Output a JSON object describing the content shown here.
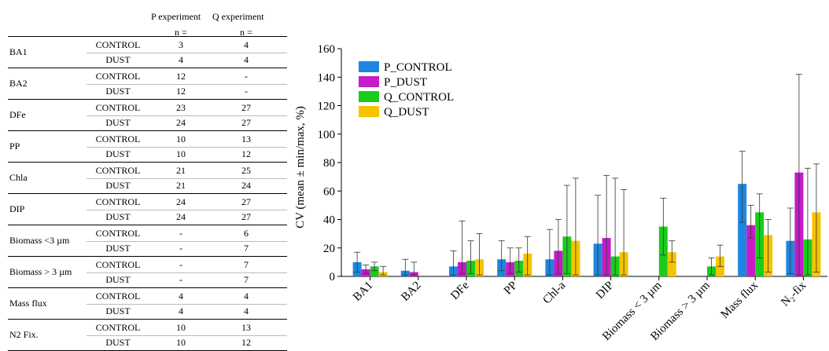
{
  "table": {
    "col_p": "P experiment",
    "col_q": "Q experiment",
    "n_label": "n =",
    "rows": [
      {
        "var": "BA1",
        "groups": [
          {
            "cond": "CONTROL",
            "p": "3",
            "q": "4"
          },
          {
            "cond": "DUST",
            "p": "4",
            "q": "4"
          }
        ]
      },
      {
        "var": "BA2",
        "groups": [
          {
            "cond": "CONTROL",
            "p": "12",
            "q": "-"
          },
          {
            "cond": "DUST",
            "p": "12",
            "q": "-"
          }
        ]
      },
      {
        "var": "DFe",
        "groups": [
          {
            "cond": "CONTROL",
            "p": "23",
            "q": "27"
          },
          {
            "cond": "DUST",
            "p": "24",
            "q": "27"
          }
        ]
      },
      {
        "var": "PP",
        "groups": [
          {
            "cond": "CONTROL",
            "p": "10",
            "q": "13"
          },
          {
            "cond": "DUST",
            "p": "10",
            "q": "12"
          }
        ]
      },
      {
        "var": "Chla",
        "groups": [
          {
            "cond": "CONTROL",
            "p": "21",
            "q": "25"
          },
          {
            "cond": "DUST",
            "p": "21",
            "q": "24"
          }
        ]
      },
      {
        "var": "DIP",
        "groups": [
          {
            "cond": "CONTROL",
            "p": "24",
            "q": "27"
          },
          {
            "cond": "DUST",
            "p": "24",
            "q": "27"
          }
        ]
      },
      {
        "var": "Biomass <3 µm",
        "groups": [
          {
            "cond": "CONTROL",
            "p": "-",
            "q": "6"
          },
          {
            "cond": "DUST",
            "p": "-",
            "q": "7"
          }
        ]
      },
      {
        "var": "Biomass > 3 µm",
        "groups": [
          {
            "cond": "CONTROL",
            "p": "-",
            "q": "7"
          },
          {
            "cond": "DUST",
            "p": "-",
            "q": "7"
          }
        ]
      },
      {
        "var": "Mass flux",
        "groups": [
          {
            "cond": "CONTROL",
            "p": "4",
            "q": "4"
          },
          {
            "cond": "DUST",
            "p": "4",
            "q": "4"
          }
        ]
      },
      {
        "var": "N2 Fix.",
        "groups": [
          {
            "cond": "CONTROL",
            "p": "10",
            "q": "13"
          },
          {
            "cond": "DUST",
            "p": "10",
            "q": "12"
          }
        ]
      }
    ]
  },
  "chart_data": {
    "type": "bar",
    "ylabel": "CV (mean ± min/max, %)",
    "ylim": [
      0,
      160
    ],
    "yticks": [
      0,
      20,
      40,
      60,
      80,
      100,
      120,
      140,
      160
    ],
    "grid": false,
    "legend_position": "top-left",
    "categories": [
      "BA1",
      "BA2",
      "DFe",
      "PP",
      "Chl-a",
      "DIP",
      "Biomass < 3 µm",
      "Biomass > 3 µm",
      "Mass flux",
      "N₂-fix"
    ],
    "series": [
      {
        "name": "P_CONTROL",
        "color": "#1e86e0",
        "values": [
          10,
          4,
          7,
          12,
          12,
          23,
          null,
          null,
          65,
          25
        ],
        "err_low": [
          3,
          1,
          1,
          4,
          1,
          1,
          null,
          null,
          38,
          2
        ],
        "err_high": [
          17,
          12,
          18,
          25,
          33,
          57,
          null,
          null,
          88,
          48
        ]
      },
      {
        "name": "P_DUST",
        "color": "#c51bc8",
        "values": [
          5,
          3,
          10,
          10,
          18,
          27,
          null,
          null,
          36,
          73
        ],
        "err_low": [
          2,
          1,
          2,
          2,
          2,
          1,
          null,
          null,
          27,
          1
        ],
        "err_high": [
          8,
          10,
          39,
          20,
          40,
          71,
          null,
          null,
          50,
          142
        ]
      },
      {
        "name": "Q_CONTROL",
        "color": "#1ccc1c",
        "values": [
          7,
          null,
          11,
          11,
          28,
          14,
          35,
          7,
          45,
          26
        ],
        "err_low": [
          4,
          null,
          2,
          3,
          2,
          1,
          15,
          1,
          13,
          1
        ],
        "err_high": [
          10,
          null,
          25,
          20,
          64,
          69,
          55,
          13,
          58,
          76
        ]
      },
      {
        "name": "Q_DUST",
        "color": "#f5c400",
        "values": [
          3,
          null,
          12,
          16,
          25,
          17,
          17,
          14,
          29,
          45
        ],
        "err_low": [
          1,
          null,
          1,
          1,
          1,
          1,
          10,
          7,
          3,
          3
        ],
        "err_high": [
          7,
          null,
          30,
          28,
          69,
          61,
          25,
          22,
          40,
          79
        ]
      }
    ]
  }
}
